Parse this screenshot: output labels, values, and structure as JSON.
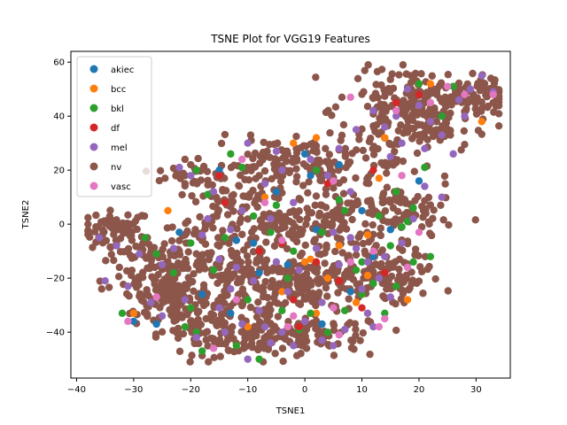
{
  "chart_data": {
    "type": "scatter",
    "title": "TSNE Plot for VGG19 Features",
    "xlabel": "TSNE1",
    "ylabel": "TSNE2",
    "xlim": [
      -41,
      36
    ],
    "ylim": [
      -57,
      64
    ],
    "xticks": [
      -40,
      -30,
      -20,
      -10,
      0,
      10,
      20,
      30
    ],
    "yticks": [
      -40,
      -20,
      0,
      20,
      40,
      60
    ],
    "grid": false,
    "legend_position": "top-left",
    "series": [
      {
        "name": "akiec",
        "color": "#1f77b4",
        "points": [
          [
            -30,
            -36
          ],
          [
            -26,
            -37
          ],
          [
            -18,
            -26
          ],
          [
            -12,
            -6
          ],
          [
            -9,
            -7
          ],
          [
            -5,
            12
          ],
          [
            0,
            26
          ],
          [
            1,
            18
          ],
          [
            2,
            -2
          ],
          [
            -3,
            -15
          ],
          [
            -8,
            -18
          ],
          [
            3,
            -37
          ],
          [
            6,
            22
          ],
          [
            10,
            5
          ],
          [
            12,
            -12
          ],
          [
            15,
            -2
          ],
          [
            20,
            16
          ],
          [
            -22,
            -3
          ],
          [
            -13,
            -33
          ],
          [
            24,
            40
          ],
          [
            8,
            -25
          ],
          [
            -15,
            20
          ],
          [
            -2,
            -28
          ]
        ]
      },
      {
        "name": "bcc",
        "color": "#ff7f0e",
        "points": [
          [
            2,
            32
          ],
          [
            -2,
            30
          ],
          [
            0,
            -14
          ],
          [
            1,
            -13
          ],
          [
            2,
            -33
          ],
          [
            9,
            -29
          ],
          [
            11,
            -19
          ],
          [
            11,
            -4
          ],
          [
            22,
            52
          ],
          [
            31,
            38
          ],
          [
            14,
            32
          ],
          [
            -24,
            5
          ],
          [
            -10,
            -38
          ],
          [
            4,
            -20
          ],
          [
            13,
            17
          ],
          [
            -7,
            10
          ],
          [
            18,
            -28
          ],
          [
            -30,
            -33
          ],
          [
            -4,
            -25
          ],
          [
            6,
            -8
          ]
        ]
      },
      {
        "name": "bkl",
        "color": "#2ca02c",
        "points": [
          [
            -32,
            -33
          ],
          [
            -19,
            -40
          ],
          [
            -18,
            -47
          ],
          [
            -12,
            -45
          ],
          [
            -8,
            -50
          ],
          [
            -10,
            -28
          ],
          [
            -20,
            -31
          ],
          [
            -16,
            -17
          ],
          [
            -9,
            3
          ],
          [
            -6,
            -3
          ],
          [
            -2,
            -10
          ],
          [
            1,
            -33
          ],
          [
            4,
            -40
          ],
          [
            7,
            -32
          ],
          [
            2,
            20
          ],
          [
            6,
            9
          ],
          [
            9,
            -17
          ],
          [
            13,
            3
          ],
          [
            16,
            12
          ],
          [
            16,
            -23
          ],
          [
            19,
            6
          ],
          [
            21,
            21
          ],
          [
            26,
            51
          ],
          [
            -19,
            20
          ],
          [
            -13,
            26
          ],
          [
            -21,
            -38
          ],
          [
            -23,
            -18
          ],
          [
            -28,
            -5
          ],
          [
            -20,
            -7
          ],
          [
            -14,
            -5
          ],
          [
            -11,
            21
          ],
          [
            -5,
            7
          ],
          [
            -3,
            -20
          ],
          [
            -1,
            -39
          ],
          [
            10,
            -26
          ],
          [
            14,
            -33
          ],
          [
            15,
            -8
          ],
          [
            17,
            -1
          ],
          [
            18,
            1
          ],
          [
            20,
            52
          ],
          [
            22,
            45
          ],
          [
            24,
            40
          ],
          [
            -4,
            -32
          ],
          [
            3,
            -3
          ],
          [
            7,
            5
          ],
          [
            10,
            -14
          ],
          [
            12,
            -22
          ],
          [
            -26,
            -11
          ],
          [
            -17,
            11
          ],
          [
            19,
            -14
          ],
          [
            22,
            -12
          ]
        ]
      },
      {
        "name": "df",
        "color": "#d62728",
        "points": [
          [
            -15,
            18
          ],
          [
            -14,
            8
          ],
          [
            -4,
            -7
          ],
          [
            -2,
            -28
          ],
          [
            2,
            -14
          ],
          [
            -1,
            -38
          ],
          [
            6,
            -21
          ],
          [
            10,
            -31
          ],
          [
            16,
            45
          ],
          [
            20,
            48
          ],
          [
            12,
            20
          ],
          [
            -8,
            -10
          ],
          [
            4,
            15
          ],
          [
            14,
            -18
          ]
        ]
      },
      {
        "name": "mel",
        "color": "#9467bd",
        "points": [
          [
            -35,
            -21
          ],
          [
            -31,
            -23
          ],
          [
            -27,
            -29
          ],
          [
            -25,
            -34
          ],
          [
            -21,
            -28
          ],
          [
            -19,
            -42
          ],
          [
            -15,
            -31
          ],
          [
            -13,
            -24
          ],
          [
            -10,
            -50
          ],
          [
            -7,
            -38
          ],
          [
            -4,
            -40
          ],
          [
            -2,
            -45
          ],
          [
            -8,
            -32
          ],
          [
            -3,
            -25
          ],
          [
            0,
            -36
          ],
          [
            3,
            -29
          ],
          [
            5,
            -45
          ],
          [
            6,
            -15
          ],
          [
            8,
            -5
          ],
          [
            10,
            -24
          ],
          [
            12,
            -38
          ],
          [
            14,
            -12
          ],
          [
            17,
            -7
          ],
          [
            19,
            2
          ],
          [
            21,
            14
          ],
          [
            24,
            10
          ],
          [
            -22,
            21
          ],
          [
            -20,
            18
          ],
          [
            -16,
            12
          ],
          [
            -11,
            5
          ],
          [
            -6,
            2
          ],
          [
            -2,
            8
          ],
          [
            1,
            24
          ],
          [
            4,
            18
          ],
          [
            6,
            28
          ],
          [
            9,
            35
          ],
          [
            12,
            42
          ],
          [
            14,
            36
          ],
          [
            16,
            40
          ],
          [
            18,
            50
          ],
          [
            20,
            44
          ],
          [
            22,
            38
          ],
          [
            24,
            33
          ],
          [
            27,
            46
          ],
          [
            29,
            50
          ],
          [
            31,
            55
          ],
          [
            33,
            49
          ],
          [
            -36,
            -5
          ],
          [
            -33,
            -8
          ],
          [
            -29,
            -11
          ],
          [
            -25,
            -15
          ],
          [
            -23,
            -9
          ],
          [
            -18,
            -4
          ],
          [
            -15,
            -13
          ],
          [
            -12,
            -16
          ],
          [
            -9,
            -21
          ],
          [
            -5,
            -14
          ],
          [
            -1,
            -17
          ],
          [
            2,
            -9
          ],
          [
            5,
            -3
          ],
          [
            9,
            -9
          ],
          [
            11,
            -14
          ],
          [
            13,
            -20
          ],
          [
            15,
            -27
          ],
          [
            -14,
            -40
          ],
          [
            -11,
            -37
          ],
          [
            -6,
            -44
          ],
          [
            3,
            -43
          ],
          [
            7,
            -39
          ],
          [
            11,
            -33
          ],
          [
            -17,
            2
          ],
          [
            -13,
            -2
          ],
          [
            -7,
            15
          ],
          [
            -4,
            20
          ],
          [
            8,
            12
          ],
          [
            15,
            25
          ],
          [
            17,
            30
          ],
          [
            21,
            28
          ],
          [
            26,
            26
          ],
          [
            -10,
            30
          ],
          [
            -5,
            27
          ],
          [
            28,
            40
          ]
        ]
      },
      {
        "name": "nv",
        "color": "#8c564b",
        "points": "__generated__"
      },
      {
        "name": "vasc",
        "color": "#e377c2",
        "points": [
          [
            -31,
            -36
          ],
          [
            -26,
            -27
          ],
          [
            -12,
            -28
          ],
          [
            -11,
            24
          ],
          [
            -4,
            -6
          ],
          [
            -7,
            8
          ],
          [
            -2,
            -34
          ],
          [
            5,
            16
          ],
          [
            5,
            -31
          ],
          [
            8,
            47
          ],
          [
            12,
            -10
          ],
          [
            14,
            -35
          ],
          [
            17,
            18
          ],
          [
            20,
            -3
          ],
          [
            22,
            45
          ],
          [
            25,
            51
          ],
          [
            28,
            48
          ],
          [
            33,
            48
          ],
          [
            -3,
            -38
          ],
          [
            8,
            -14
          ],
          [
            13,
            -38
          ],
          [
            18,
            -16
          ],
          [
            -16,
            -46
          ],
          [
            6,
            -41
          ],
          [
            16,
            42
          ]
        ]
      }
    ]
  }
}
